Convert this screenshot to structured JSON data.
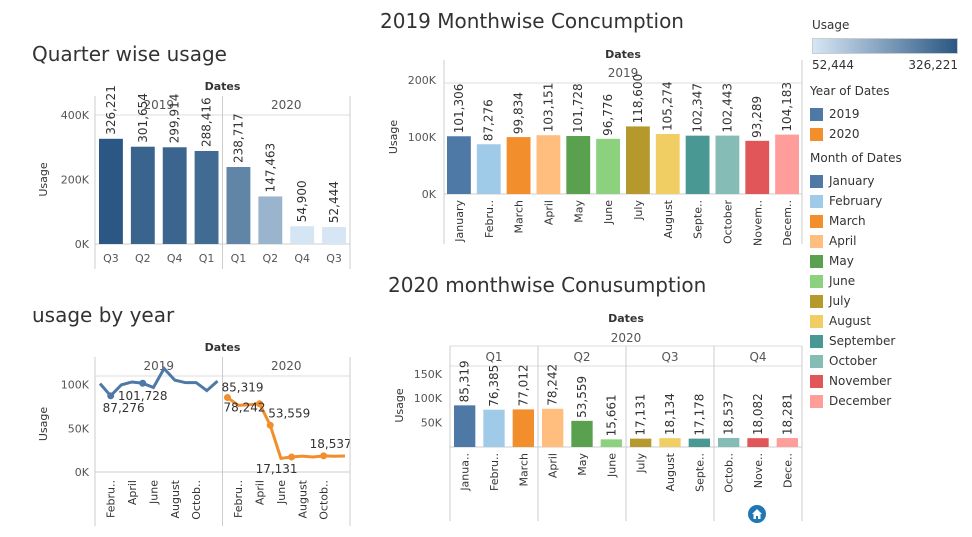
{
  "titles": {
    "quarter": "Quarter wise usage",
    "year": "usage by year",
    "m2019": "2019 Monthwise Concumption",
    "m2020": "2020 monthwise Conusumption"
  },
  "legend": {
    "usage_title": "Usage",
    "usage_min": "52,444",
    "usage_max": "326,221",
    "usage_color_low": "#d6e6f5",
    "usage_color_high": "#2a5783",
    "year_title": "Year of Dates",
    "years": [
      {
        "label": "2019",
        "color": "#4e79a7"
      },
      {
        "label": "2020",
        "color": "#f28e2b"
      }
    ],
    "month_title": "Month of Dates",
    "months": [
      {
        "label": "January",
        "color": "#4e79a7"
      },
      {
        "label": "February",
        "color": "#a0cbe8"
      },
      {
        "label": "March",
        "color": "#f28e2b"
      },
      {
        "label": "April",
        "color": "#ffbe7d"
      },
      {
        "label": "May",
        "color": "#59a14f"
      },
      {
        "label": "June",
        "color": "#8cd17d"
      },
      {
        "label": "July",
        "color": "#b6992d"
      },
      {
        "label": "August",
        "color": "#f1ce63"
      },
      {
        "label": "September",
        "color": "#499894"
      },
      {
        "label": "October",
        "color": "#86bcb6"
      },
      {
        "label": "November",
        "color": "#e15759"
      },
      {
        "label": "December",
        "color": "#ff9d9a"
      }
    ]
  },
  "chart_data": [
    {
      "id": "quarter",
      "type": "bar",
      "header": "Dates",
      "ylabel": "Usage",
      "ylim": [
        0,
        400000
      ],
      "yticks": [
        "0K",
        "200K",
        "400K"
      ],
      "yticks_values": [
        0,
        200000,
        400000
      ],
      "groups": [
        {
          "name": "2019",
          "categories": [
            "Q3",
            "Q2",
            "Q4",
            "Q1"
          ],
          "values": [
            326221,
            301654,
            299914,
            288416
          ],
          "labels": [
            "326,221",
            "301,654",
            "299,914",
            "288,416"
          ]
        },
        {
          "name": "2020",
          "categories": [
            "Q1",
            "Q2",
            "Q4",
            "Q3"
          ],
          "values": [
            238717,
            147463,
            54900,
            52444
          ],
          "labels": [
            "238,717",
            "147,463",
            "54,900",
            "52,444"
          ]
        }
      ]
    },
    {
      "id": "year",
      "type": "line",
      "header": "Dates",
      "ylabel": "Usage",
      "ylim": [
        0,
        110000
      ],
      "yticks": [
        "0K",
        "50K",
        "100K"
      ],
      "yticks_values": [
        0,
        50000,
        100000
      ],
      "xticks": [
        "Febru..",
        "April",
        "June",
        "August",
        "Octob.."
      ],
      "groups": [
        {
          "name": "2019",
          "color": "#4e79a7",
          "values": [
            101306,
            87276,
            99834,
            103151,
            101728,
            96776,
            118600,
            105274,
            102347,
            102443,
            93289,
            104183
          ],
          "annotations": [
            {
              "index": 1,
              "label": "87,276"
            },
            {
              "index": 4,
              "label": "101,728"
            }
          ]
        },
        {
          "name": "2020",
          "color": "#f28e2b",
          "values": [
            85319,
            76385,
            77012,
            78242,
            53559,
            15661,
            17131,
            18134,
            17178,
            18537,
            18082,
            18281
          ],
          "annotations": [
            {
              "index": 0,
              "label": "85,319"
            },
            {
              "index": 3,
              "label": "78,242"
            },
            {
              "index": 4,
              "label": "53,559"
            },
            {
              "index": 6,
              "label": "17,131"
            },
            {
              "index": 9,
              "label": "18,537"
            }
          ]
        }
      ]
    },
    {
      "id": "m2019",
      "type": "bar",
      "header": "Dates",
      "group": "2019",
      "ylabel": "Usage",
      "ylim": [
        0,
        200000
      ],
      "yticks": [
        "0K",
        "100K",
        "200K"
      ],
      "yticks_values": [
        0,
        100000,
        200000
      ],
      "categories": [
        "January",
        "Febru..",
        "March",
        "April",
        "May",
        "June",
        "July",
        "August",
        "Septe..",
        "October",
        "Novem..",
        "Decem.."
      ],
      "values": [
        101306,
        87276,
        99834,
        103151,
        101728,
        96776,
        118600,
        105274,
        102347,
        102443,
        93289,
        104183
      ],
      "labels": [
        "101,306",
        "87,276",
        "99,834",
        "103,151",
        "101,728",
        "96,776",
        "118,600",
        "105,274",
        "102,347",
        "102,443",
        "93,289",
        "104,183"
      ]
    },
    {
      "id": "m2020",
      "type": "bar",
      "header": "Dates",
      "group": "2020",
      "ylabel": "Usage",
      "ylim": [
        0,
        170000
      ],
      "yticks": [
        "50K",
        "100K",
        "150K"
      ],
      "yticks_values": [
        50000,
        100000,
        150000
      ],
      "quarters": [
        "Q1",
        "Q2",
        "Q3",
        "Q4"
      ],
      "categories": [
        "Janua..",
        "Febru..",
        "March",
        "April",
        "May",
        "June",
        "July",
        "August",
        "Septe..",
        "Octob..",
        "Nove..",
        "Dece.."
      ],
      "values": [
        85319,
        76385,
        77012,
        78242,
        53559,
        15661,
        17131,
        18134,
        17178,
        18537,
        18082,
        18281
      ],
      "labels": [
        "85,319",
        "76,385",
        "77,012",
        "78,242",
        "53,559",
        "15,661",
        "17,131",
        "18,134",
        "17,178",
        "18,537",
        "18,082",
        "18,281"
      ]
    }
  ]
}
